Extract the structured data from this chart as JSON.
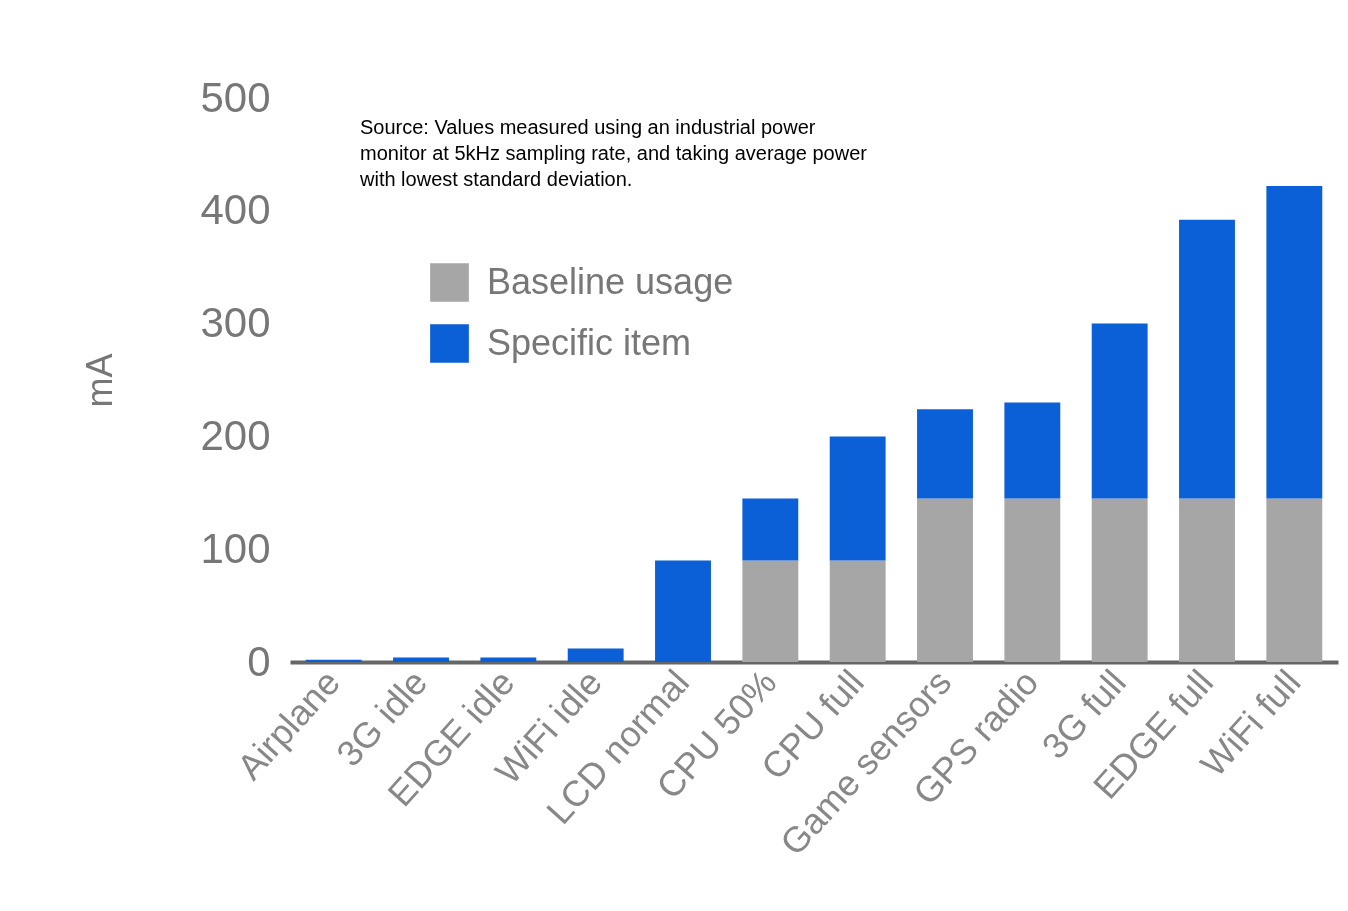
{
  "chart_data": {
    "type": "bar",
    "ylabel": "mA",
    "stacked": true,
    "categories": [
      "Airplane",
      "3G idle",
      "EDGE idle",
      "WiFi idle",
      "LCD normal",
      "CPU 50%",
      "CPU full",
      "Game sensors",
      "GPS radio",
      "3G full",
      "EDGE full",
      "WiFi full"
    ],
    "series": [
      {
        "name": "Baseline usage",
        "color": "#a6a6a6",
        "values": [
          0,
          0,
          0,
          0,
          0,
          90,
          90,
          145,
          145,
          145,
          145,
          145
        ]
      },
      {
        "name": "Specific item",
        "color": "#0b5fd7",
        "values": [
          2,
          4,
          4,
          12,
          90,
          55,
          110,
          79,
          85,
          155,
          247,
          277
        ]
      }
    ],
    "ylim": [
      0,
      500
    ],
    "yticks": [
      0,
      100,
      200,
      300,
      400,
      500
    ],
    "grid": false,
    "legend": "top left",
    "annotations": [
      "Source: Values measured using an industrial power monitor at 5kHz sampling rate, and taking average power with lowest standard deviation."
    ]
  }
}
